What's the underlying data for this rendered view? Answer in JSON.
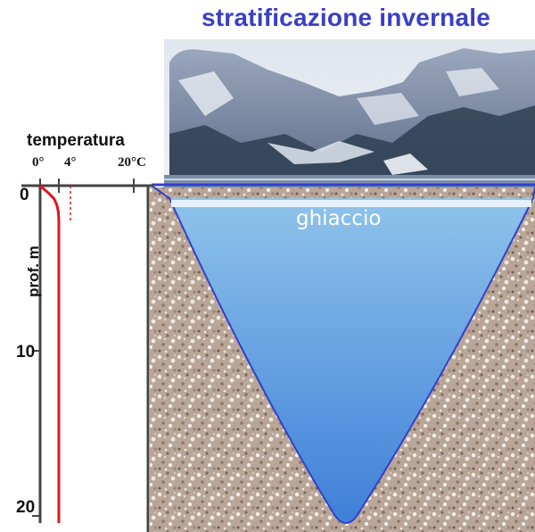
{
  "title": "stratificazione invernale",
  "temperature_axis": {
    "label": "temperatura",
    "ticks": [
      {
        "label": "0°",
        "value": 0
      },
      {
        "label": "4°",
        "value": 4
      },
      {
        "label": "20°C",
        "value": 20
      }
    ]
  },
  "depth_axis": {
    "label": "prof. m",
    "ticks": [
      {
        "label": "0",
        "value": 0
      },
      {
        "label": "10",
        "value": 10
      },
      {
        "label": "20",
        "value": 20
      }
    ]
  },
  "ice_label": "ghiaccio",
  "chart_data": {
    "type": "line",
    "series": [
      {
        "x": [
          0,
          0.8,
          2,
          3,
          3.6,
          3.9,
          4,
          4,
          4
        ],
        "y": [
          0,
          0.2,
          0.5,
          0.8,
          1.2,
          1.6,
          2.2,
          10,
          20.5
        ]
      }
    ],
    "xlim": [
      0,
      20
    ],
    "ylim": [
      0,
      20
    ]
  },
  "colors": {
    "title": "#3a3fc4",
    "temperature_curve": "#e0161b",
    "water_top": "#8ec3ea",
    "water_bottom": "#3f7fd8",
    "ice": "#e6f1fb",
    "sediment": "#b9a698",
    "outline": "#3340c9"
  }
}
